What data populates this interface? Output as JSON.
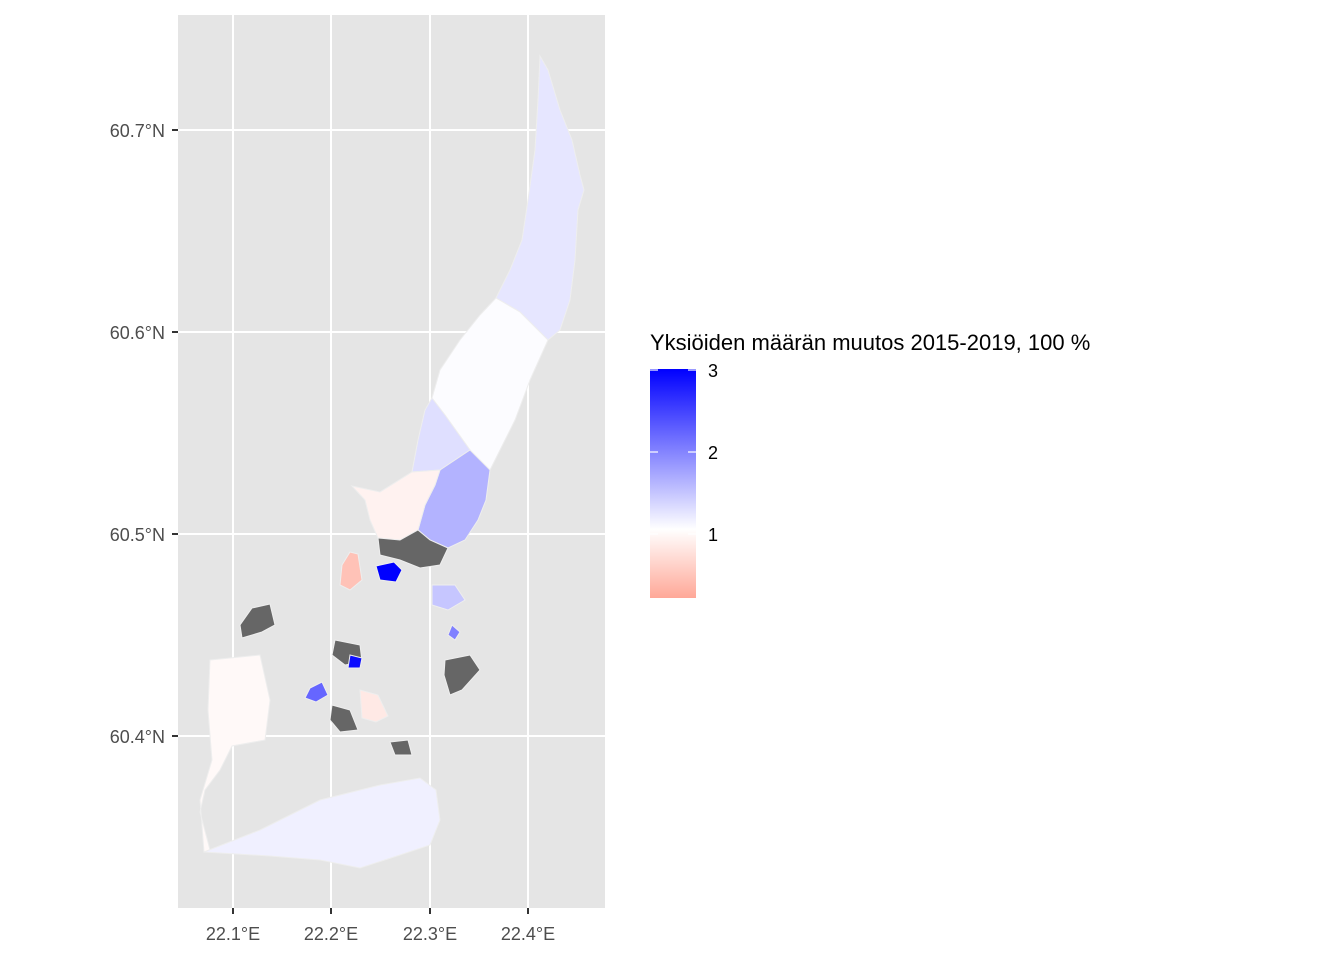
{
  "map": {
    "x_axis": {
      "ticks": [
        "22.1°E",
        "22.2°E",
        "22.3°E",
        "22.4°E"
      ],
      "range_deg": [
        22.045,
        22.475
      ]
    },
    "y_axis": {
      "ticks": [
        "60.7°N",
        "60.6°N",
        "60.5°N",
        "60.4°N"
      ],
      "range_deg": [
        60.315,
        60.758
      ]
    },
    "grid": true,
    "panel_background": "#e5e5e5"
  },
  "legend": {
    "title": "Yksiöiden määrän muutos 2015-2019, 100 %",
    "ticks": [
      "3",
      "2",
      "1"
    ],
    "scale": {
      "min": 0.0,
      "mid": 1,
      "max": 3
    },
    "colors": {
      "low": "#ffa898",
      "mid": "#ffffff",
      "high": "#0000ff"
    },
    "placement": "right"
  },
  "colors": {
    "missing_data": "#666666"
  },
  "regions": [
    {
      "name": "north-strip",
      "value": 1.2,
      "missing": false
    },
    {
      "name": "upper-middle",
      "value": 1.02,
      "missing": false
    },
    {
      "name": "west-notch",
      "value": 1.25,
      "missing": false
    },
    {
      "name": "east-purple",
      "value": 1.6,
      "missing": false
    },
    {
      "name": "northwest-peach",
      "value": 0.85,
      "missing": false
    },
    {
      "name": "center-north-gray",
      "value": null,
      "missing": true
    },
    {
      "name": "blue-patch",
      "value": 3.0,
      "missing": false
    },
    {
      "name": "orange-patch",
      "value": 0.3,
      "missing": false
    },
    {
      "name": "west-gray",
      "value": null,
      "missing": true
    },
    {
      "name": "southwest-large",
      "value": 0.93,
      "missing": false
    },
    {
      "name": "south-lavender",
      "value": 1.12,
      "missing": false
    },
    {
      "name": "south-gray",
      "value": null,
      "missing": true
    },
    {
      "name": "southeast-gray",
      "value": null,
      "missing": true
    },
    {
      "name": "center-gray",
      "value": null,
      "missing": true
    },
    {
      "name": "center-blue",
      "value": 2.9,
      "missing": false
    },
    {
      "name": "purple-west",
      "value": 2.2,
      "missing": false
    },
    {
      "name": "peach-south",
      "value": 0.75,
      "missing": false
    },
    {
      "name": "east-lavender",
      "value": 1.45,
      "missing": false
    },
    {
      "name": "east-gray",
      "value": null,
      "missing": true
    },
    {
      "name": "purple-east-small",
      "value": 2.0,
      "missing": false
    }
  ]
}
